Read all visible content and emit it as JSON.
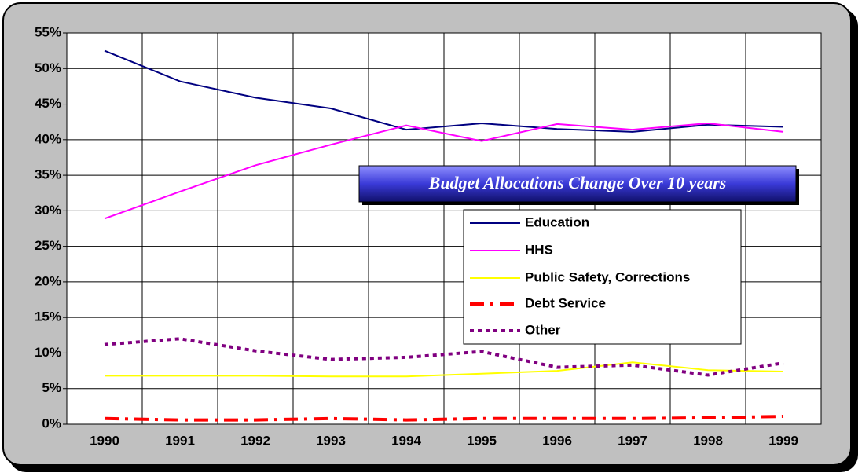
{
  "chart_data": {
    "type": "line",
    "title": "Budget Allocations Change Over 10 years",
    "categories": [
      "1990",
      "1991",
      "1992",
      "1993",
      "1994",
      "1995",
      "1996",
      "1997",
      "1998",
      "1999"
    ],
    "series": [
      {
        "name": "Education",
        "color": "#000080",
        "style": "solid",
        "values": [
          52.5,
          48.2,
          45.9,
          44.4,
          41.4,
          42.3,
          41.5,
          41.1,
          42.1,
          41.8
        ]
      },
      {
        "name": "HHS",
        "color": "#ff00ff",
        "style": "solid",
        "values": [
          28.9,
          32.7,
          36.4,
          39.3,
          42.0,
          39.8,
          42.2,
          41.4,
          42.3,
          41.1
        ]
      },
      {
        "name": "Public Safety, Corrections",
        "color": "#ffff00",
        "style": "solid",
        "values": [
          6.8,
          6.8,
          6.8,
          6.7,
          6.7,
          7.1,
          7.5,
          8.7,
          7.6,
          7.4
        ]
      },
      {
        "name": "Debt Service",
        "color": "#ff0000",
        "style": "dashdot",
        "values": [
          0.8,
          0.6,
          0.6,
          0.8,
          0.6,
          0.8,
          0.8,
          0.8,
          0.9,
          1.1
        ]
      },
      {
        "name": "Other",
        "color": "#800080",
        "style": "dotted",
        "values": [
          11.2,
          12.0,
          10.3,
          9.1,
          9.4,
          10.2,
          8.0,
          8.3,
          6.9,
          8.6
        ]
      }
    ],
    "ylim": [
      0,
      55
    ],
    "yticks": [
      {
        "value": 0,
        "label": "0%"
      },
      {
        "value": 5,
        "label": "5%"
      },
      {
        "value": 10,
        "label": "10%"
      },
      {
        "value": 15,
        "label": "15%"
      },
      {
        "value": 20,
        "label": "20%"
      },
      {
        "value": 25,
        "label": "25%"
      },
      {
        "value": 30,
        "label": "30%"
      },
      {
        "value": 35,
        "label": "35%"
      },
      {
        "value": 40,
        "label": "40%"
      },
      {
        "value": 45,
        "label": "45%"
      },
      {
        "value": 50,
        "label": "50%"
      },
      {
        "value": 55,
        "label": "55%"
      }
    ],
    "grid": true
  }
}
